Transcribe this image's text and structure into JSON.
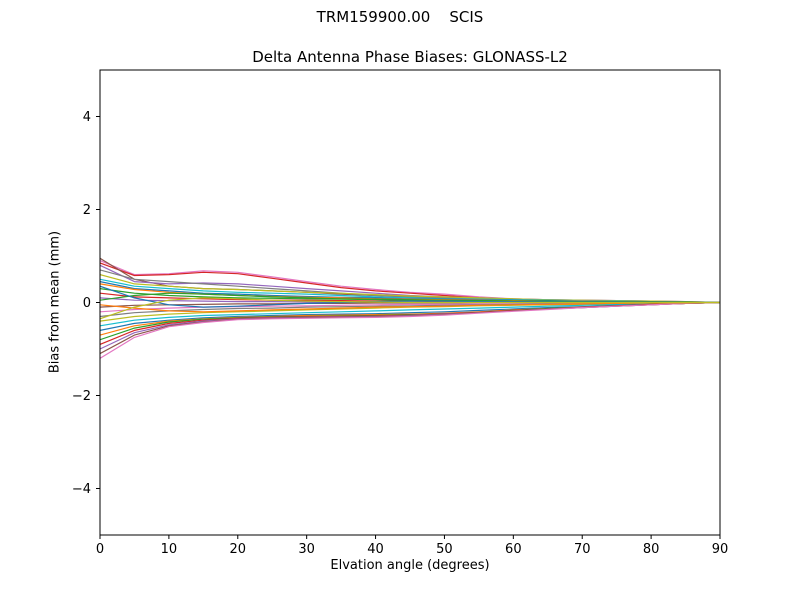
{
  "figure": {
    "title": "TRM159900.00    SCIS",
    "background": "#ffffff"
  },
  "chart_data": {
    "type": "line",
    "title": "Delta Antenna Phase Biases: GLONASS-L2",
    "xlabel": "Elvation angle (degrees)",
    "ylabel": "Bias from mean (mm)",
    "xlim": [
      0,
      90
    ],
    "ylim": [
      -5,
      5
    ],
    "x_ticks": [
      0,
      10,
      20,
      30,
      40,
      50,
      60,
      70,
      80,
      90
    ],
    "y_ticks": [
      -4,
      -2,
      0,
      2,
      4
    ],
    "grid": false,
    "legend": "none",
    "axis_color": "#000000",
    "x": [
      0,
      5,
      10,
      15,
      20,
      25,
      30,
      35,
      40,
      45,
      50,
      55,
      60,
      65,
      70,
      75,
      80,
      85,
      90
    ],
    "series": [
      {
        "color": "#e377c2",
        "values": [
          0.9,
          0.6,
          0.62,
          0.68,
          0.65,
          0.55,
          0.45,
          0.35,
          0.28,
          0.22,
          0.18,
          0.12,
          0.08,
          0.06,
          0.05,
          0.04,
          0.03,
          0.02,
          0.0
        ]
      },
      {
        "color": "#d62728",
        "values": [
          0.85,
          0.58,
          0.6,
          0.65,
          0.62,
          0.52,
          0.42,
          0.32,
          0.25,
          0.2,
          0.15,
          0.1,
          0.07,
          0.05,
          0.04,
          0.03,
          0.02,
          0.01,
          0.0
        ]
      },
      {
        "color": "#8c564b",
        "values": [
          0.95,
          0.5,
          0.35,
          0.3,
          0.28,
          0.25,
          0.22,
          0.18,
          0.15,
          0.12,
          0.1,
          0.08,
          0.06,
          0.05,
          0.04,
          0.03,
          0.02,
          0.01,
          0.0
        ]
      },
      {
        "color": "#9467bd",
        "values": [
          0.8,
          0.45,
          0.4,
          0.42,
          0.4,
          0.35,
          0.3,
          0.25,
          0.2,
          0.15,
          0.12,
          0.1,
          0.08,
          0.06,
          0.05,
          0.04,
          0.03,
          0.02,
          0.0
        ]
      },
      {
        "color": "#7f7f7f",
        "values": [
          0.7,
          0.5,
          0.45,
          0.4,
          0.35,
          0.3,
          0.25,
          0.2,
          0.15,
          0.12,
          0.1,
          0.08,
          0.06,
          0.05,
          0.04,
          0.03,
          0.02,
          0.01,
          0.0
        ]
      },
      {
        "color": "#bcbd22",
        "values": [
          0.6,
          0.4,
          0.35,
          0.3,
          0.28,
          0.25,
          0.22,
          0.2,
          0.17,
          0.14,
          0.12,
          0.1,
          0.08,
          0.06,
          0.05,
          0.04,
          0.03,
          0.02,
          0.0
        ]
      },
      {
        "color": "#17becf",
        "values": [
          0.5,
          0.35,
          0.3,
          0.25,
          0.22,
          0.2,
          0.18,
          0.15,
          0.12,
          0.1,
          0.08,
          0.07,
          0.06,
          0.05,
          0.04,
          0.03,
          0.02,
          0.01,
          0.0
        ]
      },
      {
        "color": "#1f77b4",
        "values": [
          0.45,
          0.3,
          0.25,
          0.2,
          0.18,
          0.15,
          0.13,
          0.11,
          0.1,
          0.08,
          0.07,
          0.06,
          0.05,
          0.04,
          0.03,
          0.02,
          0.02,
          0.01,
          0.0
        ]
      },
      {
        "color": "#ff7f0e",
        "values": [
          0.4,
          0.28,
          0.22,
          0.18,
          0.15,
          0.13,
          0.11,
          0.1,
          0.08,
          0.07,
          0.06,
          0.05,
          0.04,
          0.03,
          0.03,
          0.02,
          0.01,
          0.01,
          0.0
        ]
      },
      {
        "color": "#2ca02c",
        "values": [
          0.3,
          0.2,
          0.15,
          0.12,
          0.1,
          0.09,
          0.08,
          0.07,
          0.06,
          0.05,
          0.04,
          0.04,
          0.03,
          0.02,
          0.02,
          0.01,
          0.01,
          0.0,
          0.0
        ]
      },
      {
        "color": "#d62728",
        "values": [
          0.2,
          0.12,
          0.1,
          0.08,
          0.06,
          0.05,
          0.05,
          0.04,
          0.03,
          0.03,
          0.02,
          0.02,
          0.01,
          0.01,
          0.01,
          0.0,
          0.0,
          0.0,
          0.0
        ]
      },
      {
        "color": "#9467bd",
        "values": [
          0.1,
          0.05,
          0.04,
          0.03,
          0.02,
          0.02,
          0.01,
          0.01,
          0.01,
          0.0,
          0.0,
          0.0,
          0.0,
          0.0,
          0.0,
          0.0,
          0.0,
          0.0,
          0.0
        ]
      },
      {
        "color": "#8c564b",
        "values": [
          -0.1,
          -0.06,
          -0.05,
          -0.04,
          -0.03,
          -0.03,
          -0.02,
          -0.02,
          -0.01,
          -0.01,
          -0.01,
          0.0,
          0.0,
          0.0,
          0.0,
          0.0,
          0.0,
          0.0,
          0.0
        ]
      },
      {
        "color": "#e377c2",
        "values": [
          -0.2,
          -0.15,
          -0.12,
          -0.1,
          -0.09,
          -0.08,
          -0.07,
          -0.06,
          -0.05,
          -0.04,
          -0.04,
          -0.03,
          -0.03,
          -0.02,
          -0.02,
          -0.01,
          -0.01,
          0.0,
          0.0
        ]
      },
      {
        "color": "#7f7f7f",
        "values": [
          -0.3,
          -0.22,
          -0.18,
          -0.15,
          -0.13,
          -0.12,
          -0.1,
          -0.09,
          -0.08,
          -0.07,
          -0.06,
          -0.05,
          -0.04,
          -0.03,
          -0.03,
          -0.02,
          -0.01,
          -0.01,
          0.0
        ]
      },
      {
        "color": "#bcbd22",
        "values": [
          -0.4,
          -0.3,
          -0.25,
          -0.22,
          -0.2,
          -0.18,
          -0.16,
          -0.14,
          -0.12,
          -0.1,
          -0.09,
          -0.07,
          -0.06,
          -0.05,
          -0.04,
          -0.03,
          -0.02,
          -0.01,
          0.0
        ]
      },
      {
        "color": "#17becf",
        "values": [
          -0.5,
          -0.38,
          -0.32,
          -0.28,
          -0.26,
          -0.24,
          -0.22,
          -0.2,
          -0.18,
          -0.16,
          -0.14,
          -0.12,
          -0.1,
          -0.08,
          -0.06,
          -0.04,
          -0.03,
          -0.01,
          0.0
        ]
      },
      {
        "color": "#1f77b4",
        "values": [
          -0.6,
          -0.45,
          -0.38,
          -0.33,
          -0.3,
          -0.28,
          -0.26,
          -0.25,
          -0.24,
          -0.22,
          -0.2,
          -0.17,
          -0.14,
          -0.11,
          -0.09,
          -0.06,
          -0.04,
          -0.02,
          0.0
        ]
      },
      {
        "color": "#ff7f0e",
        "values": [
          -0.7,
          -0.5,
          -0.4,
          -0.35,
          -0.32,
          -0.3,
          -0.28,
          -0.27,
          -0.26,
          -0.25,
          -0.23,
          -0.2,
          -0.16,
          -0.13,
          -0.1,
          -0.07,
          -0.05,
          -0.02,
          0.0
        ]
      },
      {
        "color": "#2ca02c",
        "values": [
          -0.8,
          -0.55,
          -0.42,
          -0.36,
          -0.33,
          -0.31,
          -0.3,
          -0.29,
          -0.28,
          -0.26,
          -0.24,
          -0.21,
          -0.17,
          -0.13,
          -0.1,
          -0.07,
          -0.04,
          -0.02,
          0.0
        ]
      },
      {
        "color": "#d62728",
        "values": [
          -0.9,
          -0.6,
          -0.45,
          -0.38,
          -0.34,
          -0.32,
          -0.31,
          -0.3,
          -0.29,
          -0.27,
          -0.24,
          -0.21,
          -0.17,
          -0.14,
          -0.1,
          -0.07,
          -0.04,
          -0.02,
          0.0
        ]
      },
      {
        "color": "#9467bd",
        "values": [
          -1.0,
          -0.65,
          -0.48,
          -0.4,
          -0.35,
          -0.33,
          -0.32,
          -0.31,
          -0.3,
          -0.28,
          -0.25,
          -0.22,
          -0.18,
          -0.14,
          -0.11,
          -0.08,
          -0.05,
          -0.02,
          0.0
        ]
      },
      {
        "color": "#8c564b",
        "values": [
          -1.1,
          -0.7,
          -0.5,
          -0.42,
          -0.36,
          -0.34,
          -0.33,
          -0.32,
          -0.31,
          -0.29,
          -0.26,
          -0.22,
          -0.18,
          -0.14,
          -0.11,
          -0.08,
          -0.05,
          -0.02,
          0.0
        ]
      },
      {
        "color": "#e377c2",
        "values": [
          -1.2,
          -0.75,
          -0.52,
          -0.43,
          -0.37,
          -0.35,
          -0.34,
          -0.33,
          -0.32,
          -0.3,
          -0.27,
          -0.23,
          -0.19,
          -0.15,
          -0.11,
          -0.08,
          -0.05,
          -0.02,
          0.0
        ]
      },
      {
        "color": "#2ca02c",
        "values": [
          0.05,
          0.15,
          0.2,
          0.18,
          0.15,
          0.12,
          0.1,
          0.08,
          0.07,
          0.06,
          0.05,
          0.04,
          0.03,
          0.03,
          0.02,
          0.02,
          0.01,
          0.01,
          0.0
        ]
      },
      {
        "color": "#ff7f0e",
        "values": [
          -0.05,
          -0.12,
          -0.18,
          -0.2,
          -0.18,
          -0.16,
          -0.14,
          -0.12,
          -0.1,
          -0.09,
          -0.08,
          -0.06,
          -0.05,
          -0.04,
          -0.03,
          -0.02,
          -0.01,
          -0.01,
          0.0
        ]
      },
      {
        "color": "#1f77b4",
        "values": [
          0.35,
          0.1,
          -0.05,
          -0.1,
          -0.08,
          -0.05,
          -0.02,
          0.0,
          0.02,
          0.03,
          0.03,
          0.02,
          0.02,
          0.01,
          0.01,
          0.01,
          0.0,
          0.0,
          0.0
        ]
      },
      {
        "color": "#bcbd22",
        "values": [
          -0.35,
          -0.1,
          0.05,
          0.1,
          0.08,
          0.05,
          0.03,
          0.02,
          0.01,
          0.0,
          0.0,
          0.0,
          0.0,
          0.0,
          0.0,
          0.0,
          0.0,
          0.0,
          0.0
        ]
      }
    ]
  }
}
